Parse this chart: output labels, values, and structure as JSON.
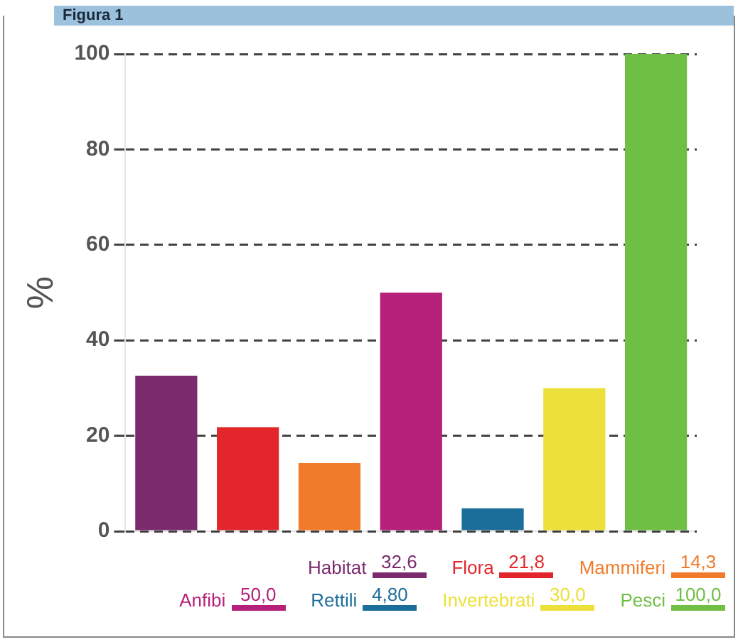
{
  "chart_data": {
    "type": "bar",
    "title": "Figura 1",
    "ylabel": "%",
    "categories": [
      null,
      null,
      null,
      null,
      null,
      null,
      null
    ],
    "series": [
      {
        "name": "Habitat",
        "color": "#7b2a6e",
        "values": [
          32.6,
          null,
          null,
          null,
          null,
          null,
          null
        ]
      },
      {
        "name": "Flora",
        "color": "#e2262b",
        "values": [
          null,
          21.8,
          null,
          null,
          null,
          null,
          null
        ]
      },
      {
        "name": "Mammiferi",
        "color": "#f07c2b",
        "values": [
          null,
          null,
          14.3,
          null,
          null,
          null,
          null
        ]
      },
      {
        "name": "Anfibi",
        "color": "#b5217a",
        "values": [
          null,
          null,
          null,
          50.0,
          null,
          null,
          null
        ]
      },
      {
        "name": "Rettili",
        "color": "#1c6e9a",
        "values": [
          null,
          null,
          null,
          null,
          4.8,
          null,
          null
        ]
      },
      {
        "name": "Invertebrati",
        "color": "#ece03a",
        "values": [
          null,
          null,
          null,
          null,
          null,
          30.0,
          null
        ]
      },
      {
        "name": "Pesci",
        "color": "#6fbf45",
        "values": [
          null,
          null,
          null,
          null,
          null,
          null,
          100.0
        ]
      }
    ],
    "annotations": [
      "32,6",
      "21,8",
      "14,3",
      "50,0",
      "4,80",
      "30,0",
      "100,0"
    ],
    "ylim": [
      0,
      100
    ],
    "yticks": [
      0,
      20,
      40,
      60,
      80,
      100
    ],
    "grid": "y",
    "legend": "bottom",
    "tick_labels": "y"
  }
}
